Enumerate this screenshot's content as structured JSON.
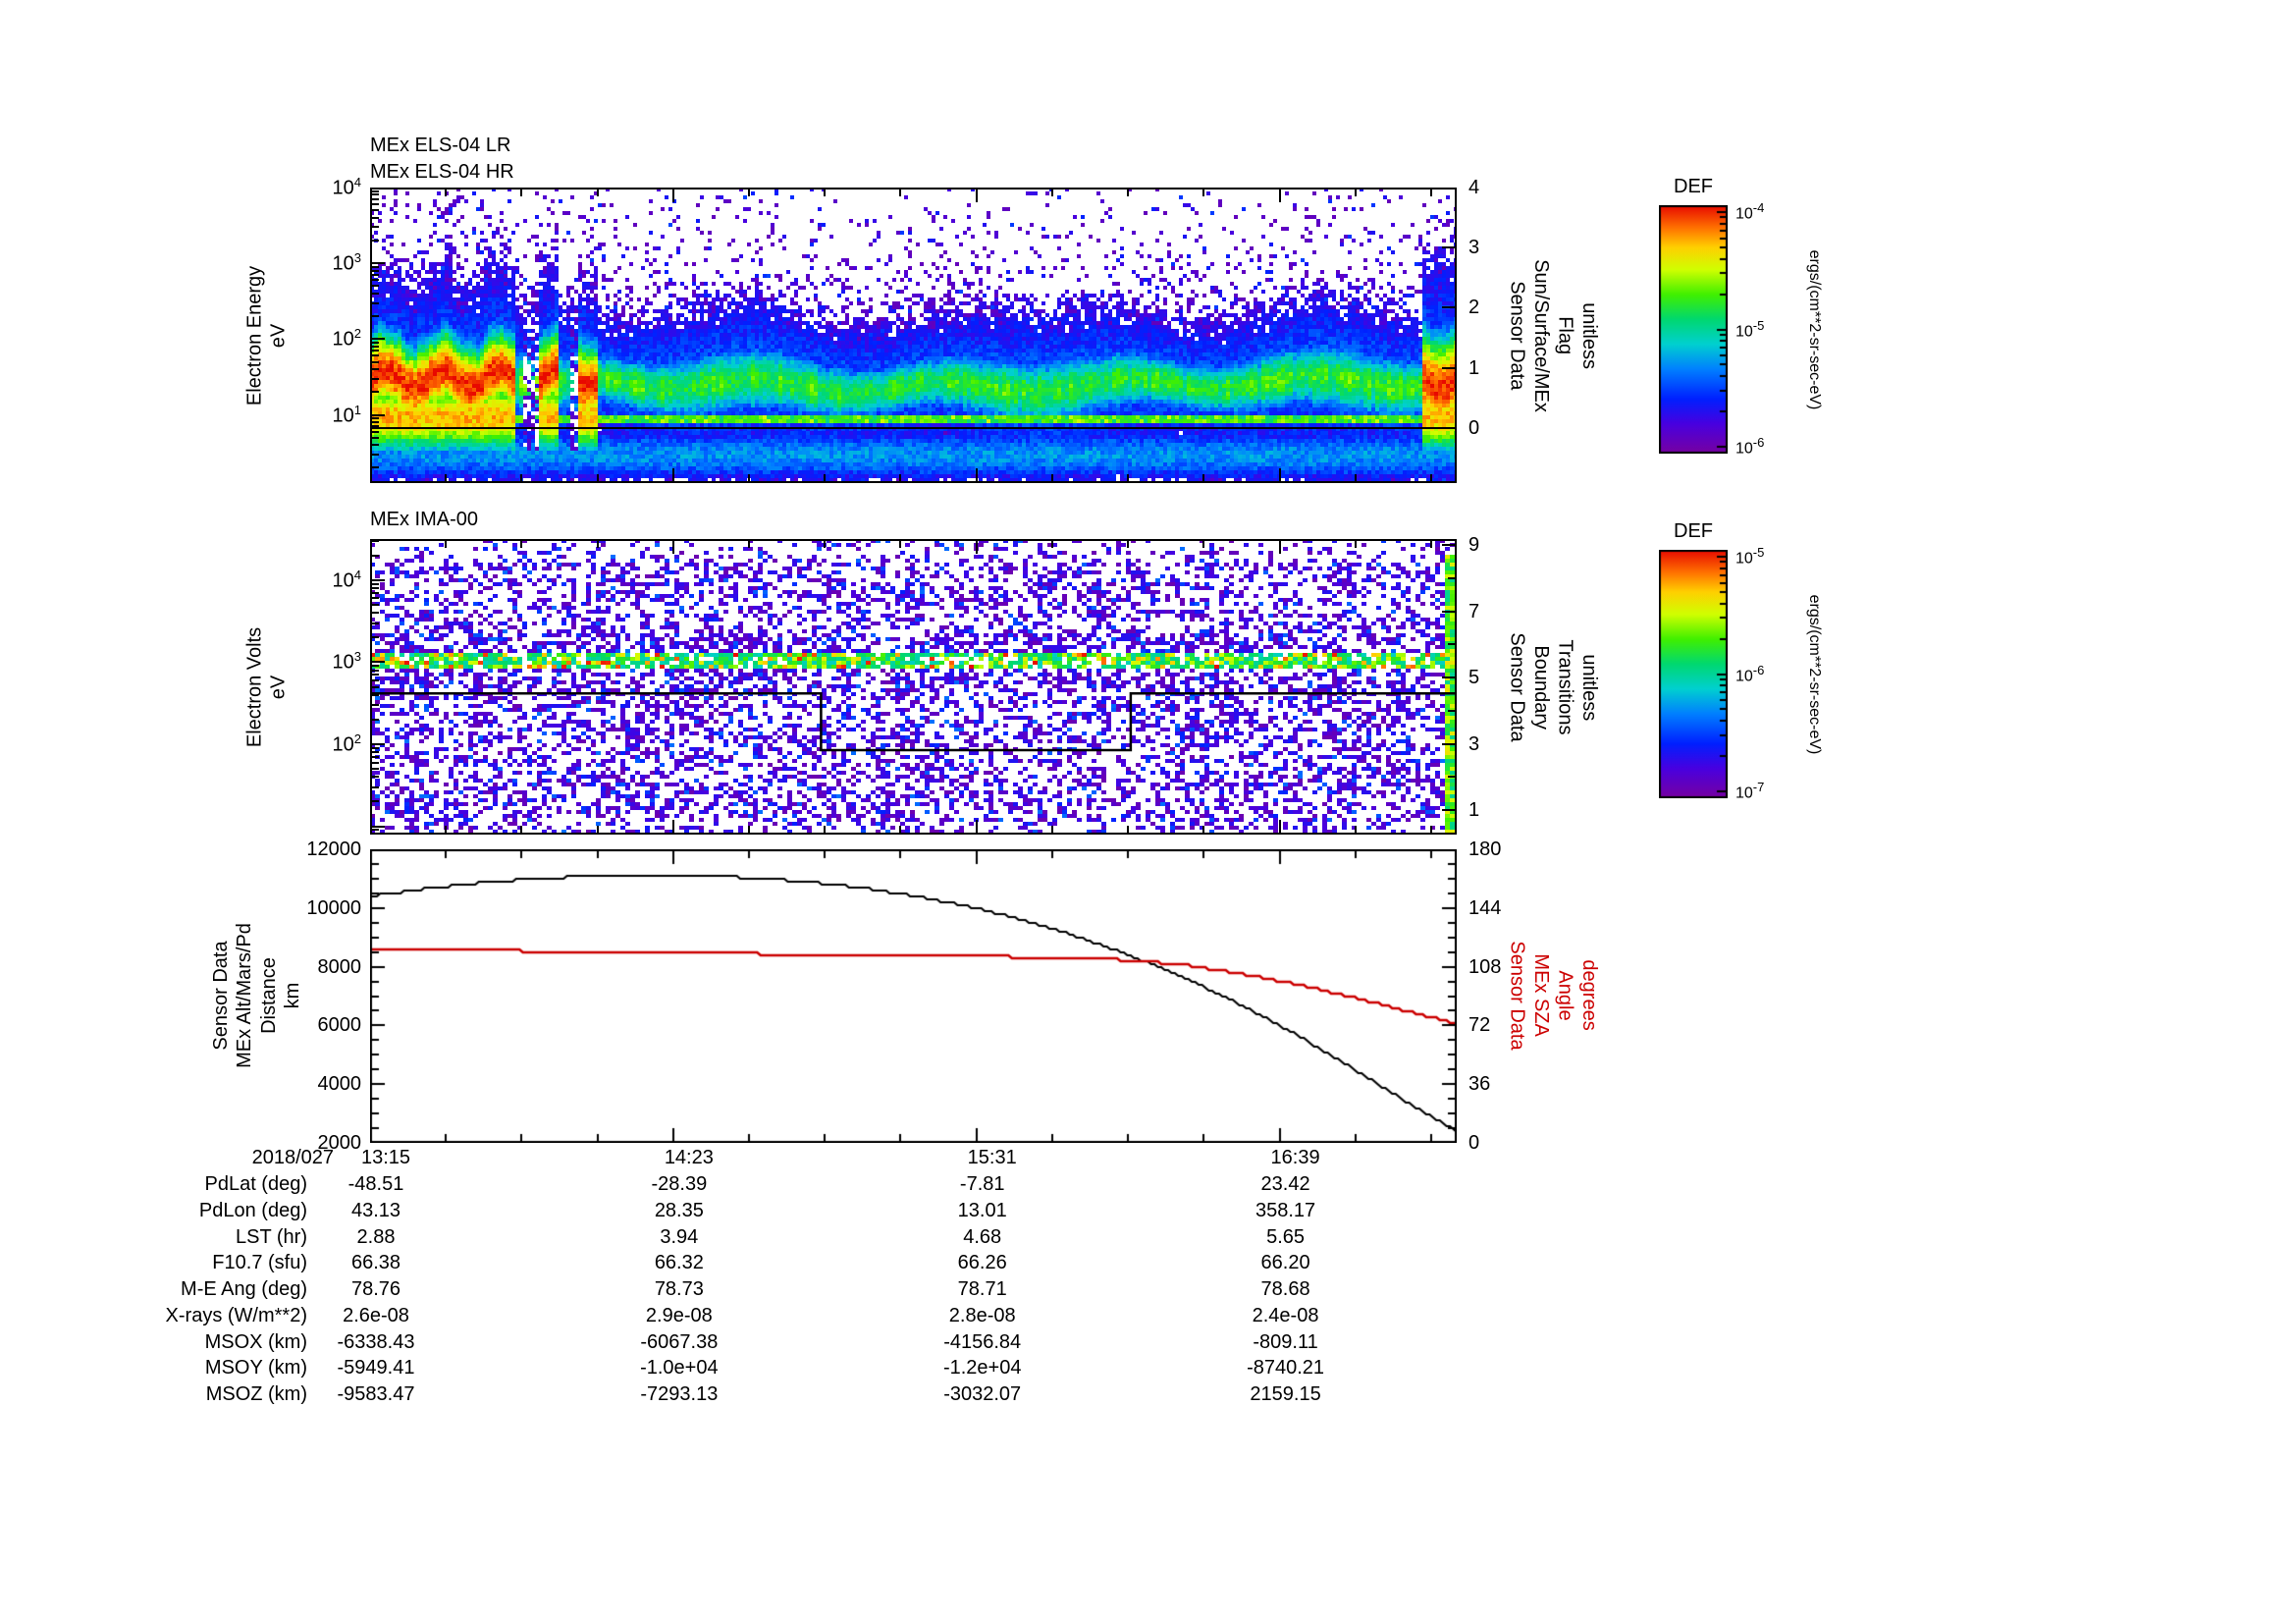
{
  "panel1": {
    "titles": [
      "MEx ELS-04 LR",
      "MEx ELS-04 HR"
    ],
    "ylabel": "Electron Energy\neV",
    "ytick_labels": [
      "10^4",
      "10^3",
      "10^2",
      "10^1"
    ],
    "ytick_logs": [
      4,
      3,
      2,
      1
    ],
    "right_label": "Sensor Data\nSun/Surface/MEx\nFlag\nunitless",
    "right_tick_labels": [
      "4",
      "3",
      "2",
      "1",
      "0"
    ],
    "right_tick_values": [
      4,
      3,
      2,
      1,
      0
    ]
  },
  "panel2": {
    "title": "MEx IMA-00",
    "ylabel": "Electron Volts\neV",
    "ytick_labels": [
      "10^4",
      "10^3",
      "10^2"
    ],
    "ytick_logs": [
      4,
      3,
      2
    ],
    "right_label": "Sensor Data\nBoundary\nTransitions\nunitless",
    "right_tick_labels": [
      "9",
      "7",
      "5",
      "3",
      "1"
    ],
    "right_tick_values": [
      9,
      7,
      5,
      3,
      1
    ]
  },
  "panel3": {
    "ylabel": "Sensor Data\nMEx Alt/Mars/Pd\nDistance\nkm",
    "ytick_labels": [
      "12000",
      "10000",
      "8000",
      "6000",
      "4000",
      "2000"
    ],
    "ytick_values": [
      12000,
      10000,
      8000,
      6000,
      4000,
      2000
    ],
    "right_label": "Sensor Data\nMEx SZA\nAngle\ndegrees",
    "right_tick_labels": [
      "180",
      "144",
      "108",
      "72",
      "36",
      "0"
    ],
    "right_tick_values": [
      180,
      144,
      108,
      72,
      36,
      0
    ],
    "right_color": "#cc0000"
  },
  "colorbar1": {
    "title": "DEF",
    "tick_labels": [
      "10^-4",
      "10^-5",
      "10^-6"
    ],
    "unit": "ergs/(cm**2-sr-sec-eV)"
  },
  "colorbar2": {
    "title": "DEF",
    "tick_labels": [
      "10^-5",
      "10^-6",
      "10^-7"
    ],
    "unit": "ergs/(cm**2-sr-sec-eV)"
  },
  "time_axis": {
    "date": "2018/027",
    "ticks": [
      "13:15",
      "14:23",
      "15:31",
      "16:39"
    ]
  },
  "table": {
    "rows": [
      {
        "label": "PdLat (deg)",
        "values": [
          "-48.51",
          "-28.39",
          "-7.81",
          "23.42"
        ]
      },
      {
        "label": "PdLon (deg)",
        "values": [
          "43.13",
          "28.35",
          "13.01",
          "358.17"
        ]
      },
      {
        "label": "LST (hr)",
        "values": [
          "2.88",
          "3.94",
          "4.68",
          "5.65"
        ]
      },
      {
        "label": "F10.7 (sfu)",
        "values": [
          "66.38",
          "66.32",
          "66.26",
          "66.20"
        ]
      },
      {
        "label": "M-E Ang (deg)",
        "values": [
          "78.76",
          "78.73",
          "78.71",
          "78.68"
        ]
      },
      {
        "label": "X-rays (W/m**2)",
        "values": [
          "2.6e-08",
          "2.9e-08",
          "2.8e-08",
          "2.4e-08"
        ]
      },
      {
        "label": "MSOX (km)",
        "values": [
          "-6338.43",
          "-6067.38",
          "-4156.84",
          "-809.11"
        ]
      },
      {
        "label": "MSOY (km)",
        "values": [
          "-5949.41",
          "-1.0e+04",
          "-1.2e+04",
          "-8740.21"
        ]
      },
      {
        "label": "MSOZ (km)",
        "values": [
          "-9583.47",
          "-7293.13",
          "-3032.07",
          "2159.15"
        ]
      }
    ]
  },
  "chart_data": [
    {
      "type": "heatmap",
      "id": "els_spectrogram",
      "title": "MEx ELS-04 LR / MEx ELS-04 HR",
      "ylabel": "Electron Energy (eV)",
      "y_scale": "log",
      "ylim_eV": [
        1.3,
        10000
      ],
      "x_tick_labels": [
        "13:15",
        "14:23",
        "15:31",
        "16:39"
      ],
      "x_tick_interval_min": 68,
      "right_axis": {
        "label": "Sensor Data Sun/Surface/MEx Flag (unitless)",
        "ylim": [
          0,
          4
        ],
        "flag_trace_value": 0
      },
      "colorbar": {
        "title": "DEF",
        "units": "ergs/(cm**2-sr-sec-eV)",
        "log10_range": [
          -6,
          -4
        ]
      },
      "features": [
        {
          "desc": "intense red flux blob ~1e-4",
          "t_frac": [
            0.0,
            0.132
          ],
          "energy_eV": [
            7,
            160
          ]
        },
        {
          "desc": "red burst",
          "t_frac": [
            0.152,
            0.172
          ],
          "energy_eV": [
            7,
            160
          ]
        },
        {
          "desc": "red burst",
          "t_frac": [
            0.188,
            0.206
          ],
          "energy_eV": [
            7,
            160
          ]
        },
        {
          "desc": "steady green band ~1e-5",
          "t_frac": [
            0.13,
            0.97
          ],
          "energy_eV": [
            8,
            120
          ]
        },
        {
          "desc": "bright green stripe",
          "t_frac": [
            0.0,
            1.0
          ],
          "energy_eV": [
            8,
            10
          ]
        },
        {
          "desc": "blue halo ~3e-6",
          "t_frac": [
            0.0,
            1.0
          ],
          "energy_eV": [
            3,
            400
          ]
        },
        {
          "desc": "red burst at right edge",
          "t_frac": [
            0.968,
            1.0
          ],
          "energy_eV": [
            7,
            250
          ]
        },
        {
          "desc": "sparse purple speckle ~1e-6",
          "t_frac": [
            0.0,
            1.0
          ],
          "energy_eV": [
            300,
            10000
          ]
        },
        {
          "desc": "black flag trace at flag=0 across full range"
        }
      ]
    },
    {
      "type": "heatmap",
      "id": "ima_spectrogram",
      "title": "MEx IMA-00",
      "ylabel": "Electron Volts (eV)",
      "y_scale": "log",
      "ylim_eV": [
        8,
        31623
      ],
      "right_axis": {
        "label": "Sensor Data Boundary Transitions (unitless)",
        "ylim": [
          0,
          9
        ]
      },
      "colorbar": {
        "title": "DEF",
        "units": "ergs/(cm**2-sr-sec-eV)",
        "log10_range": [
          -7,
          -5
        ]
      },
      "features": [
        {
          "desc": "bright dotted ion line, green-cyan with orange/red dots, 1e-6..1e-5",
          "t_frac": [
            0.0,
            1.0
          ],
          "energy_eV": [
            850,
            1300
          ]
        },
        {
          "desc": "dense purple background noise ~1e-7",
          "t_frac": [
            0.0,
            1.0
          ],
          "energy_eV": [
            8,
            20000
          ]
        },
        {
          "desc": "green vertical stripe",
          "t_frac": [
            0.985,
            1.0
          ],
          "energy_eV": [
            10,
            20000
          ]
        }
      ],
      "boundary_line_log10eV": [
        [
          0.0,
          2.62
        ],
        [
          0.415,
          2.62
        ],
        [
          0.415,
          1.93
        ],
        [
          0.7,
          1.93
        ],
        [
          0.7,
          2.62
        ],
        [
          1.0,
          2.62
        ]
      ]
    },
    {
      "type": "line",
      "id": "altitude_sza",
      "x_date": "2018/027",
      "x_tick_labels": [
        "13:15",
        "14:23",
        "15:31",
        "16:39"
      ],
      "x_tick_interval_min": 68,
      "ylim_left": [
        2000,
        12000
      ],
      "ylim_right": [
        0,
        180
      ],
      "grid": false,
      "legend": "axis labels (left black, right red)",
      "series": [
        {
          "name": "MEx Alt/Mars/Pd Distance (km)",
          "axis": "left",
          "color": "#000000",
          "x_frac": [
            0,
            0.05,
            0.1,
            0.15,
            0.2,
            0.25,
            0.3,
            0.35,
            0.4,
            0.45,
            0.5,
            0.55,
            0.6,
            0.65,
            0.7,
            0.75,
            0.8,
            0.85,
            0.9,
            0.95,
            1
          ],
          "values": [
            10400,
            10650,
            10850,
            11000,
            11080,
            11110,
            11100,
            11030,
            10900,
            10700,
            10420,
            10060,
            9600,
            9040,
            8380,
            7610,
            6730,
            5740,
            4640,
            3480,
            2400
          ]
        },
        {
          "name": "MEx SZA Angle (degrees)",
          "axis": "right",
          "color": "#cc0000",
          "x_frac": [
            0,
            0.1,
            0.2,
            0.3,
            0.4,
            0.5,
            0.6,
            0.65,
            0.7,
            0.75,
            0.8,
            0.85,
            0.9,
            0.95,
            1
          ],
          "values": [
            118.8,
            118,
            117.2,
            116.4,
            115.5,
            114.8,
            114,
            113.3,
            112,
            109,
            104,
            97.5,
            90,
            81.5,
            73
          ]
        }
      ]
    }
  ]
}
